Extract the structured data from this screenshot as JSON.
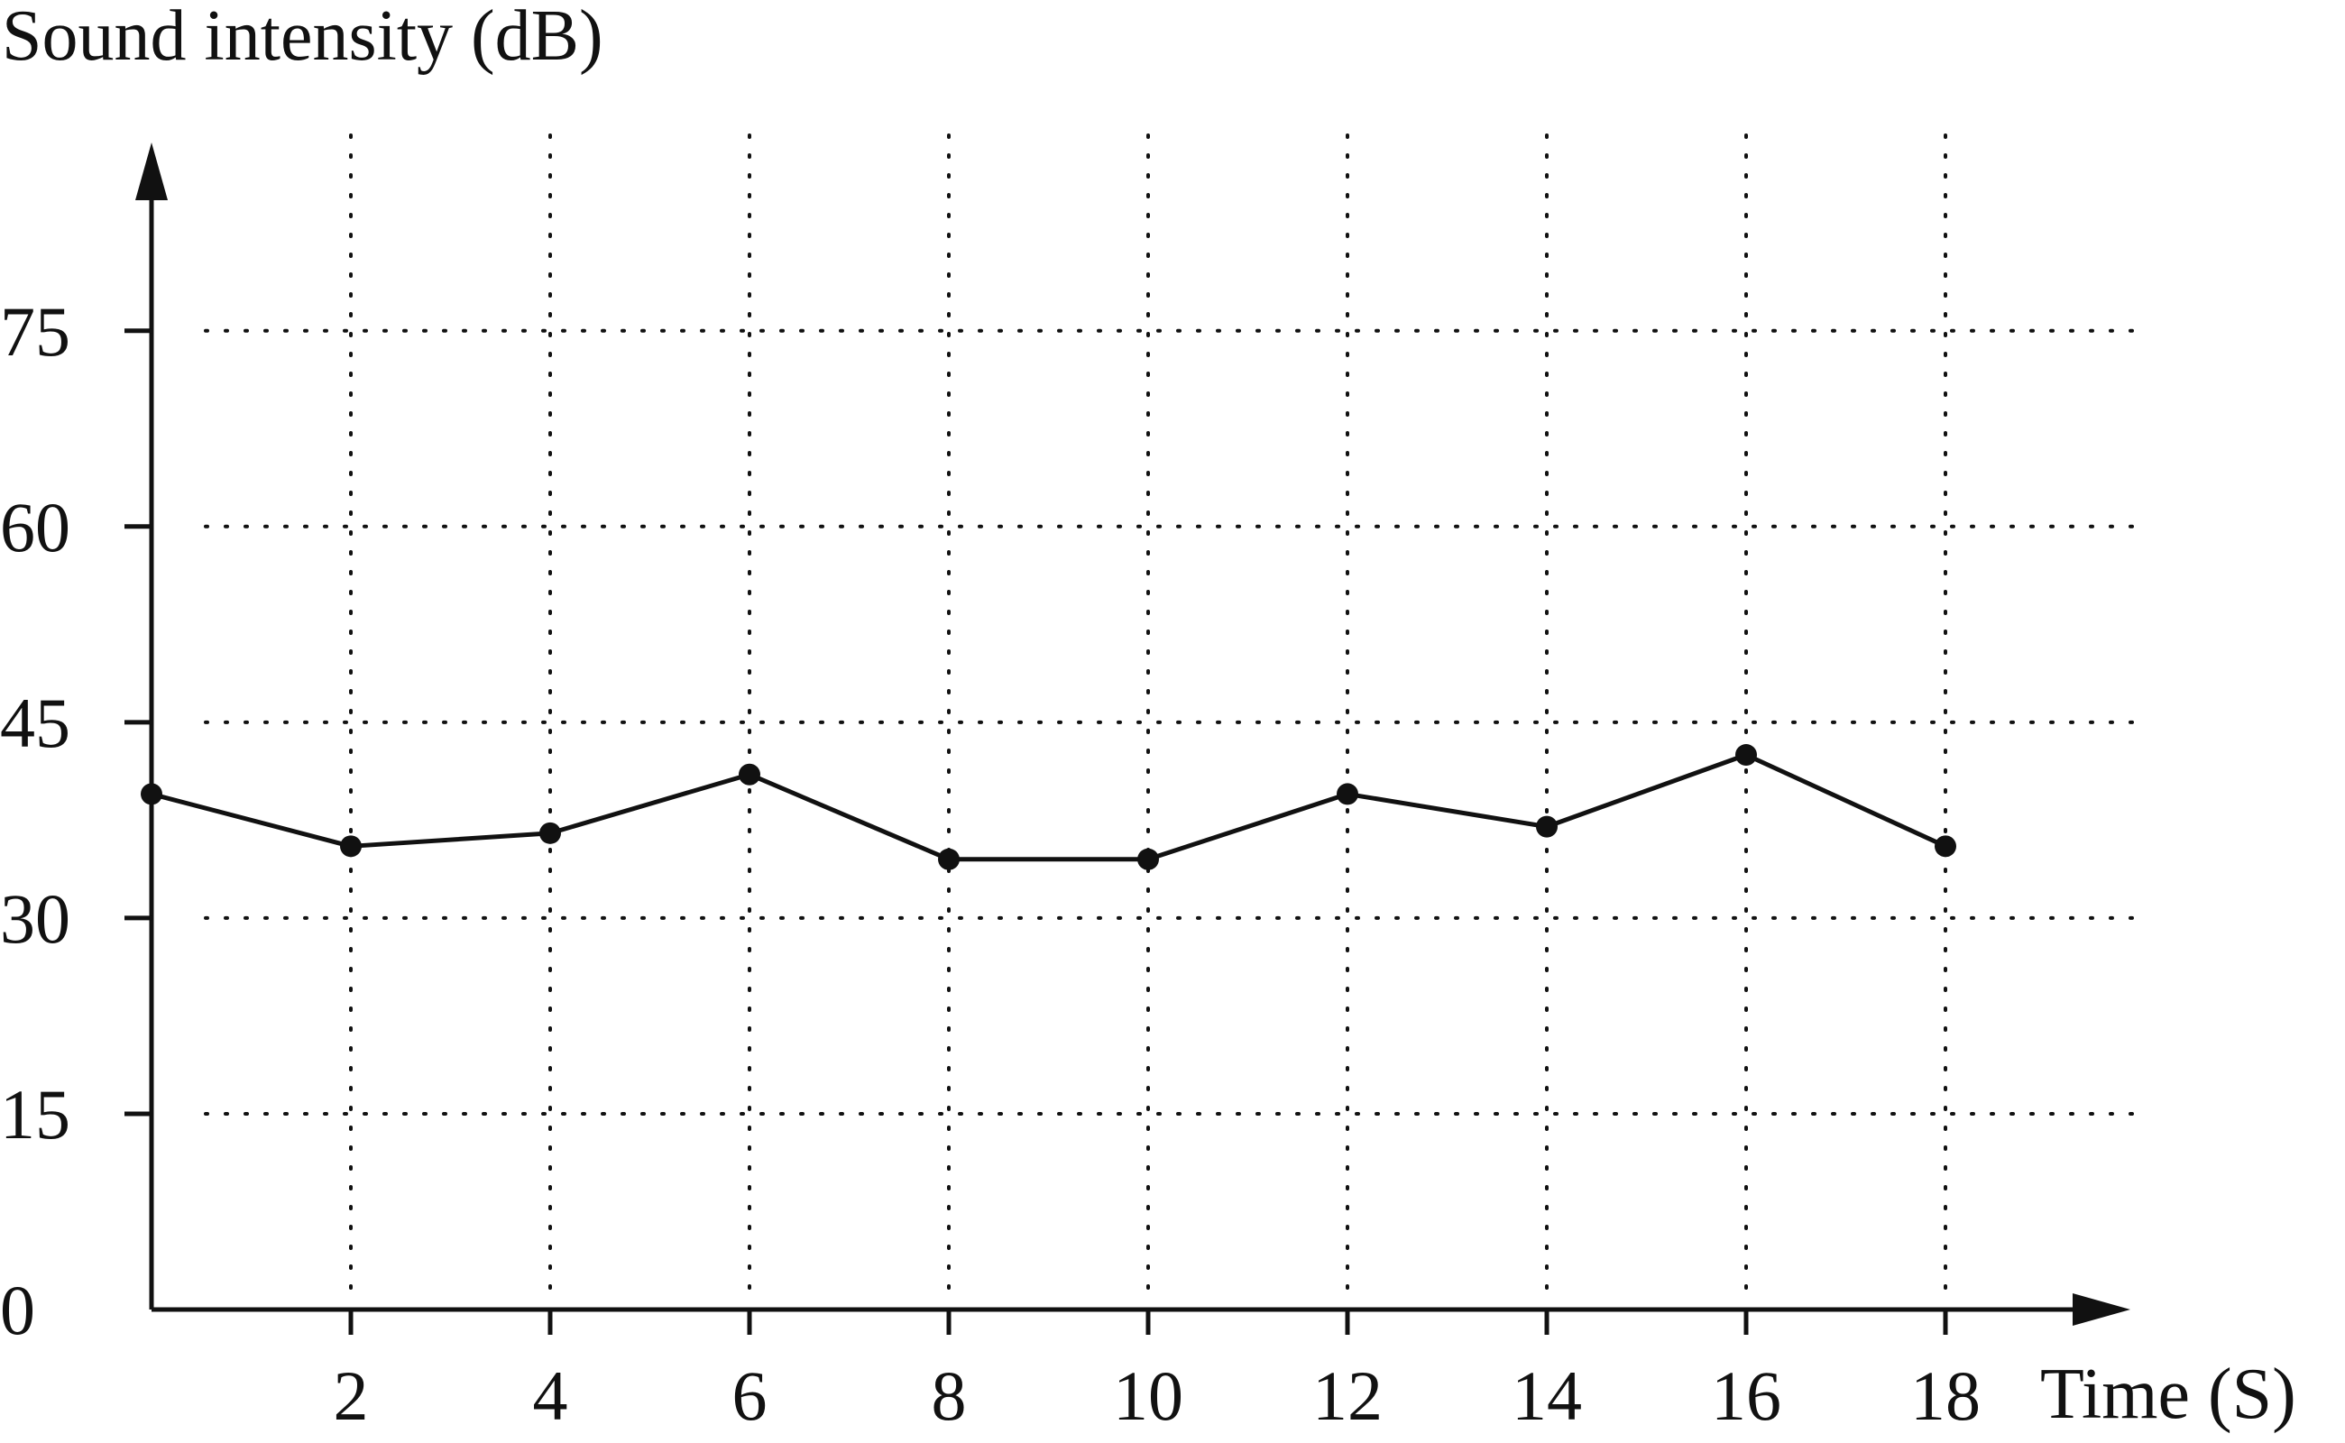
{
  "chart_data": {
    "type": "line",
    "title": "",
    "ylabel": "Sound intensity (dB)",
    "xlabel": "Time (S)",
    "xlim": [
      0,
      20
    ],
    "ylim": [
      0,
      90
    ],
    "x_ticks": [
      "2",
      "4",
      "6",
      "8",
      "10",
      "12",
      "14",
      "16",
      "18"
    ],
    "y_ticks": [
      "0",
      "15",
      "30",
      "45",
      "60",
      "75"
    ],
    "grid": true,
    "legend": "none",
    "series": [
      {
        "x": [
          0,
          2,
          4,
          6,
          8,
          10,
          12,
          14,
          16,
          18
        ],
        "y": [
          39.5,
          35.5,
          36.5,
          41,
          34.5,
          34.5,
          39.5,
          37,
          42.5,
          35.5
        ]
      }
    ],
    "colors": {
      "ink": "#111111",
      "background": "#ffffff"
    }
  }
}
